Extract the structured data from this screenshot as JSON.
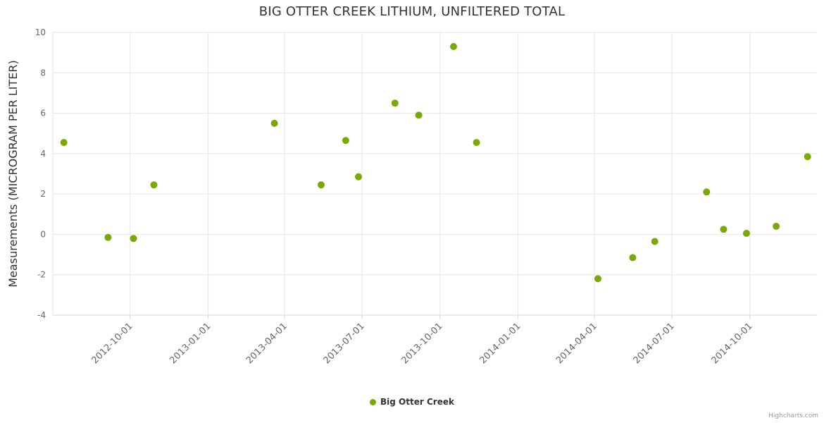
{
  "title": "BIG OTTER CREEK LITHIUM, UNFILTERED TOTAL",
  "legend": {
    "label": "Big Otter Creek"
  },
  "credits": "Highcharts.com",
  "colors": {
    "point": "#7aa805",
    "grid": "#e6e6e6",
    "axis_line": "#ccd6eb",
    "tick_label": "#666666",
    "axis_title": "#333333",
    "title": "#333333"
  },
  "chart_data": {
    "type": "scatter",
    "title": "BIG OTTER CREEK LITHIUM, UNFILTERED TOTAL",
    "xlabel": "",
    "ylabel": "Measurements (MICROGRAM PER LITER)",
    "ylim": [
      -4,
      10
    ],
    "y_ticks": [
      10,
      8,
      6,
      4,
      2,
      0,
      -2,
      -4
    ],
    "x_ticks": [
      "2012-10-01",
      "2013-01-01",
      "2013-04-01",
      "2013-07-01",
      "2013-10-01",
      "2014-01-01",
      "2014-04-01",
      "2014-07-01",
      "2014-10-01"
    ],
    "x_range": [
      "2012-07-02",
      "2014-12-19"
    ],
    "grid": true,
    "legend_position": "bottom-center",
    "series": [
      {
        "name": "Big Otter Creek",
        "color": "#7aa805",
        "points": [
          {
            "x": "2012-07-15",
            "y": 4.55
          },
          {
            "x": "2012-09-05",
            "y": -0.15
          },
          {
            "x": "2012-10-05",
            "y": -0.2
          },
          {
            "x": "2012-10-29",
            "y": 2.45
          },
          {
            "x": "2013-03-20",
            "y": 5.5
          },
          {
            "x": "2013-05-14",
            "y": 2.45
          },
          {
            "x": "2013-06-12",
            "y": 4.65
          },
          {
            "x": "2013-06-27",
            "y": 2.85
          },
          {
            "x": "2013-08-09",
            "y": 6.5
          },
          {
            "x": "2013-09-06",
            "y": 5.9
          },
          {
            "x": "2013-10-17",
            "y": 9.3
          },
          {
            "x": "2013-11-13",
            "y": 4.55
          },
          {
            "x": "2014-04-05",
            "y": -2.2
          },
          {
            "x": "2014-05-16",
            "y": -1.15
          },
          {
            "x": "2014-06-11",
            "y": -0.35
          },
          {
            "x": "2014-08-11",
            "y": 2.1
          },
          {
            "x": "2014-08-31",
            "y": 0.25
          },
          {
            "x": "2014-09-27",
            "y": 0.05
          },
          {
            "x": "2014-11-01",
            "y": 0.4
          },
          {
            "x": "2014-12-08",
            "y": 3.85
          }
        ]
      }
    ]
  }
}
